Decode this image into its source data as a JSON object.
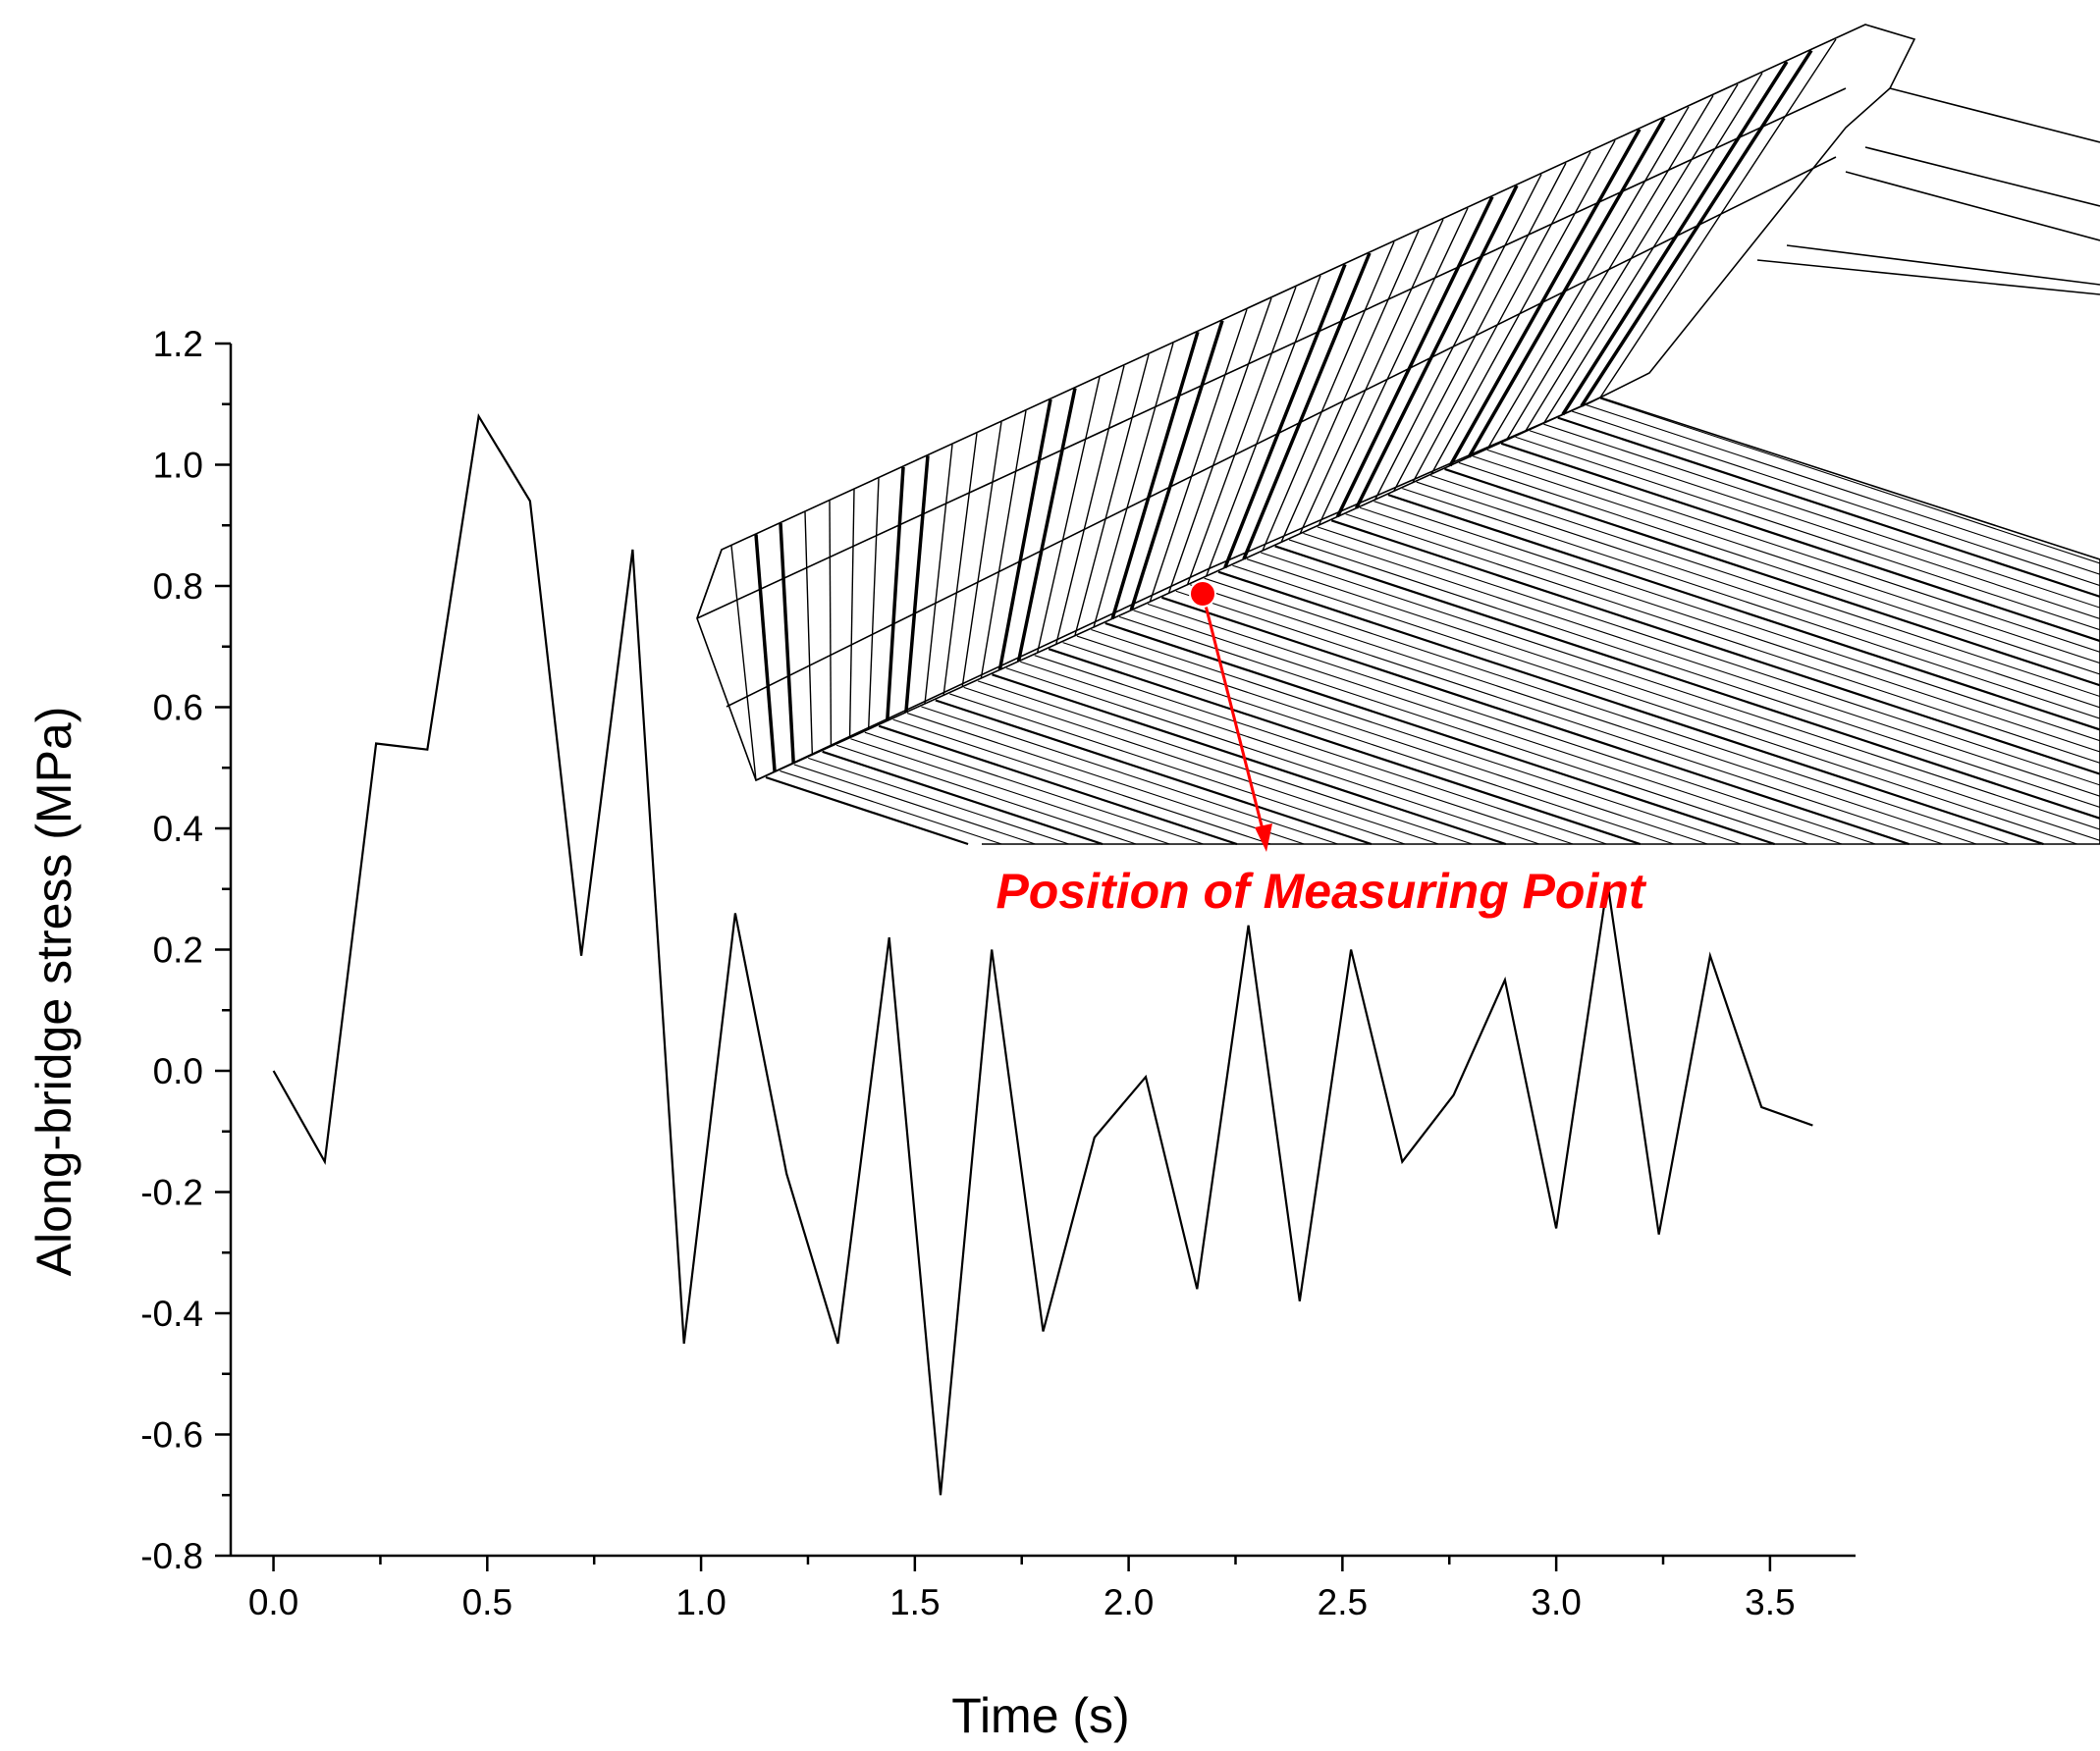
{
  "chart_data": {
    "type": "line",
    "xlabel": "Time (s)",
    "ylabel": "Along-bridge stress (MPa)",
    "xlim": [
      -0.1,
      3.7
    ],
    "ylim": [
      -0.8,
      1.2
    ],
    "xticks": [
      "0.0",
      "0.5",
      "1.0",
      "1.5",
      "2.0",
      "2.5",
      "3.0",
      "3.5"
    ],
    "yticks": [
      "-0.8",
      "-0.6",
      "-0.4",
      "-0.2",
      "0.0",
      "0.2",
      "0.4",
      "0.6",
      "0.8",
      "1.0",
      "1.2"
    ],
    "grid": false,
    "series": [
      {
        "x": [
          0.0,
          0.12,
          0.24,
          0.36,
          0.48,
          0.6,
          0.72,
          0.84,
          0.96,
          1.08,
          1.2,
          1.32,
          1.44,
          1.56,
          1.68,
          1.8,
          1.92,
          2.04,
          2.16,
          2.28,
          2.4,
          2.52,
          2.64,
          2.76,
          2.88,
          3.0,
          3.12,
          3.24,
          3.36,
          3.48,
          3.6
        ],
        "y": [
          0.0,
          -0.15,
          0.54,
          0.53,
          1.08,
          0.94,
          0.19,
          0.86,
          -0.45,
          0.26,
          -0.17,
          -0.45,
          0.22,
          -0.7,
          0.2,
          -0.43,
          -0.11,
          -0.01,
          -0.36,
          0.24,
          -0.38,
          0.2,
          -0.15,
          -0.04,
          0.15,
          -0.26,
          0.31,
          -0.27,
          0.19,
          -0.06,
          -0.09
        ],
        "color": "#000000"
      }
    ],
    "annotations": [
      {
        "text": "Position of Measuring Point",
        "color": "#ff0000"
      }
    ]
  }
}
